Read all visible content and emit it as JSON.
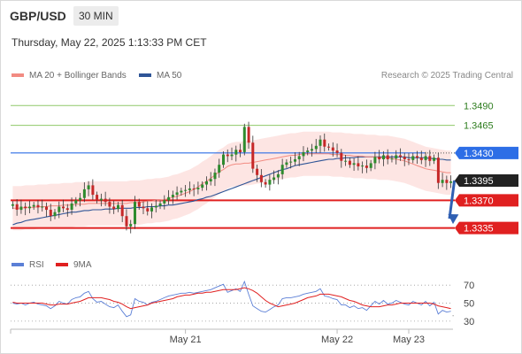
{
  "header": {
    "symbol": "GBP/USD",
    "timeframe": "30 MIN",
    "datetime": "Thursday, May 22, 2025 1:13:33 PM CET"
  },
  "legend": {
    "ma20_bb": {
      "label": "MA 20 + Bollinger Bands",
      "color": "#f28b82"
    },
    "ma50": {
      "label": "MA 50",
      "color": "#2f5597"
    },
    "copyright": "Research © 2025 Trading Central"
  },
  "rsi_legend": {
    "rsi": {
      "label": "RSI",
      "color": "#5b7fd6"
    },
    "ma9": {
      "label": "9MA",
      "color": "#e02020"
    }
  },
  "chart_data": [
    {
      "type": "candlestick",
      "ylim": [
        1.3302,
        1.3515
      ],
      "x_ticks": [
        {
          "label": "May 21",
          "index": 41
        },
        {
          "label": "May 22",
          "index": 77
        },
        {
          "label": "May 23",
          "index": 94
        }
      ],
      "levels": [
        {
          "value": 1.349,
          "label": "1.3490",
          "color": "#8fc96a",
          "text_color": "#2e7d1f",
          "style": "resistance"
        },
        {
          "value": 1.3465,
          "label": "1.3465",
          "color": "#8fc96a",
          "text_color": "#2e7d1f",
          "style": "resistance"
        },
        {
          "value": 1.343,
          "label": "1.3430",
          "color": "#2d6ee6",
          "text_color": "#ffffff",
          "style": "pivot"
        },
        {
          "value": 1.3395,
          "label": "1.3395",
          "color": "#222222",
          "text_color": "#ffffff",
          "style": "last"
        },
        {
          "value": 1.337,
          "label": "1.3370",
          "color": "#e02020",
          "text_color": "#ffffff",
          "style": "support"
        },
        {
          "value": 1.3335,
          "label": "1.3335",
          "color": "#e02020",
          "text_color": "#ffffff",
          "style": "support"
        }
      ],
      "close": [
        1.3365,
        1.3358,
        1.3362,
        1.336,
        1.3362,
        1.3364,
        1.3361,
        1.3362,
        1.3358,
        1.335,
        1.3355,
        1.3362,
        1.336,
        1.3358,
        1.3366,
        1.337,
        1.3373,
        1.3384,
        1.3389,
        1.3377,
        1.337,
        1.3372,
        1.3368,
        1.3362,
        1.3359,
        1.3364,
        1.335,
        1.3337,
        1.334,
        1.3368,
        1.3362,
        1.336,
        1.3356,
        1.3361,
        1.3363,
        1.3366,
        1.337,
        1.3374,
        1.3377,
        1.338,
        1.3382,
        1.3383,
        1.3385,
        1.3384,
        1.3386,
        1.339,
        1.3394,
        1.3397,
        1.3405,
        1.3415,
        1.3428,
        1.3426,
        1.3428,
        1.3434,
        1.3431,
        1.3463,
        1.3443,
        1.341,
        1.3402,
        1.3393,
        1.339,
        1.3396,
        1.3399,
        1.3403,
        1.3415,
        1.3418,
        1.3419,
        1.3422,
        1.3426,
        1.3431,
        1.3433,
        1.3435,
        1.3439,
        1.3447,
        1.3438,
        1.3437,
        1.3433,
        1.343,
        1.342,
        1.342,
        1.3415,
        1.3417,
        1.3413,
        1.3414,
        1.3411,
        1.3417,
        1.3425,
        1.3422,
        1.3427,
        1.3422,
        1.3423,
        1.3427,
        1.3425,
        1.3422,
        1.3421,
        1.3426,
        1.3424,
        1.3421,
        1.3426,
        1.342,
        1.3424,
        1.3392,
        1.3396,
        1.3392,
        1.3394
      ],
      "ma20": [
        1.336,
        1.336,
        1.336,
        1.3361,
        1.3361,
        1.3361,
        1.3362,
        1.3362,
        1.3362,
        1.3363,
        1.3363,
        1.3363,
        1.3364,
        1.3364,
        1.3364,
        1.3365,
        1.3365,
        1.3365,
        1.3366,
        1.3366,
        1.3366,
        1.3366,
        1.3366,
        1.3366,
        1.3366,
        1.3366,
        1.3366,
        1.3366,
        1.3367,
        1.3367,
        1.3367,
        1.3368,
        1.3369,
        1.3369,
        1.337,
        1.337,
        1.3371,
        1.3372,
        1.3374,
        1.3375,
        1.3377,
        1.3379,
        1.3381,
        1.3384,
        1.3387,
        1.3391,
        1.3394,
        1.3398,
        1.3402,
        1.3406,
        1.3409,
        1.3413,
        1.3415,
        1.3416,
        1.3416,
        1.3417,
        1.3417,
        1.3418,
        1.3419,
        1.342,
        1.3421,
        1.3422,
        1.3423,
        1.3424,
        1.3425,
        1.3426,
        1.3427,
        1.3427,
        1.3428,
        1.3429,
        1.3429,
        1.3429,
        1.3429,
        1.3429,
        1.3429,
        1.3429,
        1.3428,
        1.3428,
        1.3428,
        1.3427,
        1.3427,
        1.3426,
        1.3426,
        1.3426,
        1.3425,
        1.3425,
        1.3425,
        1.3424,
        1.3424,
        1.3424,
        1.3423,
        1.3422,
        1.3421,
        1.342,
        1.3418,
        1.3416,
        1.3414,
        1.3412,
        1.341,
        1.3409,
        1.3408,
        1.3407,
        1.3406,
        1.3405,
        1.3405
      ],
      "ma50": [
        1.3339,
        1.3341,
        1.3342,
        1.3344,
        1.3345,
        1.3346,
        1.3347,
        1.3348,
        1.3349,
        1.335,
        1.3351,
        1.3352,
        1.3353,
        1.3354,
        1.3355,
        1.3355,
        1.3356,
        1.3357,
        1.3357,
        1.3358,
        1.3358,
        1.3358,
        1.3359,
        1.3359,
        1.3359,
        1.336,
        1.336,
        1.336,
        1.336,
        1.3361,
        1.3361,
        1.3361,
        1.3362,
        1.3362,
        1.3362,
        1.3363,
        1.3363,
        1.3364,
        1.3364,
        1.3365,
        1.3366,
        1.3367,
        1.3368,
        1.3369,
        1.3371,
        1.3372,
        1.3374,
        1.3375,
        1.3377,
        1.3379,
        1.3381,
        1.3383,
        1.3385,
        1.3387,
        1.3389,
        1.3391,
        1.3393,
        1.3395,
        1.3397,
        1.3399,
        1.3401,
        1.3403,
        1.3405,
        1.3407,
        1.3409,
        1.341,
        1.3412,
        1.3414,
        1.3415,
        1.3416,
        1.3417,
        1.3418,
        1.3419,
        1.342,
        1.3421,
        1.3422,
        1.3422,
        1.3423,
        1.3423,
        1.3424,
        1.3424,
        1.3424,
        1.3425,
        1.3425,
        1.3425,
        1.3425,
        1.3425,
        1.3425,
        1.3425,
        1.3425,
        1.3425,
        1.3425,
        1.3425,
        1.3425,
        1.3424,
        1.3424,
        1.3424,
        1.3424,
        1.3424,
        1.3423,
        1.3423,
        1.3422,
        1.3422,
        1.3421,
        1.3421
      ],
      "bb_width": 0.0028,
      "projection": {
        "from_value": 1.3395,
        "to_value": 1.334
      }
    },
    {
      "type": "line",
      "title": "RSI",
      "ylim": [
        25,
        80
      ],
      "y_ticks": [
        70,
        50,
        30
      ],
      "rsi": [
        50,
        49,
        50,
        48,
        50,
        51,
        49,
        48,
        47,
        44,
        47,
        52,
        50,
        49,
        54,
        56,
        57,
        61,
        63,
        55,
        51,
        52,
        49,
        46,
        45,
        48,
        41,
        35,
        37,
        55,
        52,
        51,
        48,
        51,
        52,
        54,
        56,
        58,
        59,
        60,
        61,
        61,
        62,
        61,
        62,
        63,
        64,
        65,
        67,
        69,
        71,
        62,
        64,
        66,
        63,
        74,
        60,
        47,
        44,
        41,
        40,
        43,
        46,
        48,
        55,
        56,
        56,
        57,
        58,
        60,
        61,
        62,
        63,
        66,
        58,
        57,
        55,
        54,
        48,
        48,
        45,
        47,
        44,
        45,
        42,
        47,
        52,
        49,
        53,
        49,
        50,
        53,
        51,
        49,
        48,
        52,
        50,
        48,
        52,
        47,
        51,
        38,
        42,
        40,
        41
      ],
      "ma9": [
        51,
        50,
        50,
        50,
        50,
        50,
        50,
        50,
        49,
        48,
        48,
        49,
        49,
        49,
        50,
        51,
        52,
        54,
        56,
        56,
        56,
        56,
        55,
        54,
        52,
        51,
        49,
        46,
        44,
        45,
        46,
        47,
        48,
        50,
        51,
        52,
        53,
        54,
        55,
        57,
        58,
        59,
        59,
        60,
        61,
        61,
        62,
        62,
        63,
        64,
        65,
        65,
        65,
        65,
        66,
        67,
        66,
        64,
        61,
        57,
        53,
        50,
        48,
        46,
        47,
        48,
        49,
        50,
        52,
        54,
        56,
        57,
        58,
        60,
        60,
        60,
        59,
        58,
        57,
        55,
        53,
        52,
        50,
        48,
        47,
        46,
        46,
        46,
        47,
        48,
        48,
        49,
        50,
        50,
        50,
        50,
        50,
        50,
        50,
        50,
        49,
        47,
        46,
        45,
        44
      ],
      "guide_value": 36
    }
  ]
}
